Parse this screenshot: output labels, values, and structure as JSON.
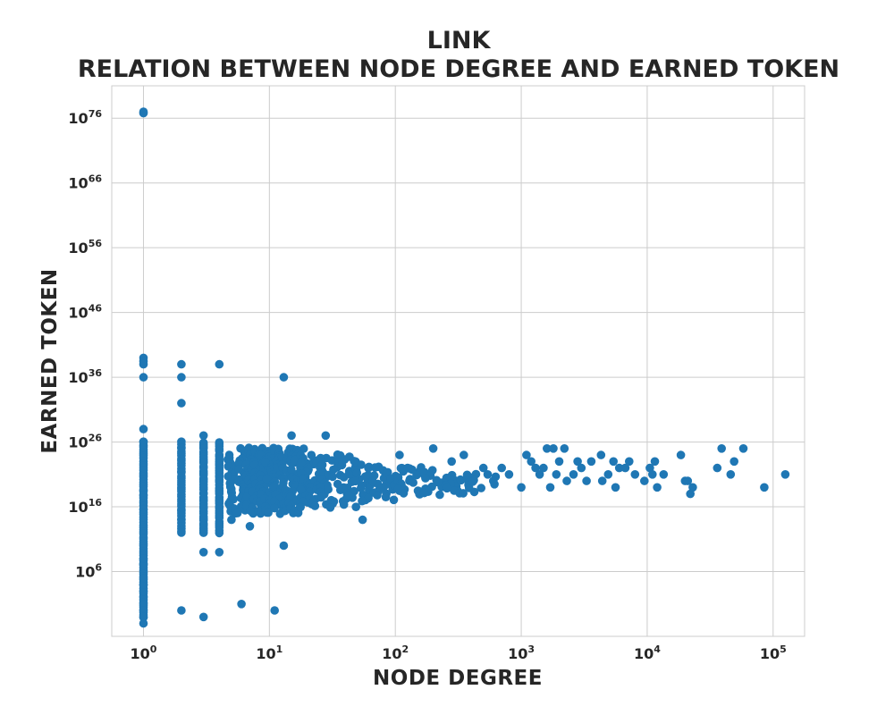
{
  "chart_data": {
    "type": "scatter",
    "title": "LINK",
    "subtitle": "RELATION BETWEEN NODE DEGREE AND EARNED TOKEN",
    "xlabel": "NODE DEGREE",
    "ylabel": "EARNED TOKEN",
    "x_scale": "log",
    "y_scale": "log",
    "xlim": [
      0.56,
      177800
    ],
    "ylim": [
      0.0001,
      1e+81
    ],
    "grid": true,
    "marker_color": "#1f77b4",
    "grid_color": "#cccccc",
    "x_ticks": [
      {
        "value": 1,
        "base": "10",
        "exp": "0"
      },
      {
        "value": 10,
        "base": "10",
        "exp": "1"
      },
      {
        "value": 100,
        "base": "10",
        "exp": "2"
      },
      {
        "value": 1000,
        "base": "10",
        "exp": "3"
      },
      {
        "value": 10000,
        "base": "10",
        "exp": "4"
      },
      {
        "value": 100000,
        "base": "10",
        "exp": "5"
      }
    ],
    "y_ticks": [
      {
        "value": 1000000.0,
        "base": "10",
        "exp": "6"
      },
      {
        "value": 1e+16,
        "base": "10",
        "exp": "16"
      },
      {
        "value": 1e+26,
        "base": "10",
        "exp": "26"
      },
      {
        "value": 1e+36,
        "base": "10",
        "exp": "36"
      },
      {
        "value": 1e+46,
        "base": "10",
        "exp": "46"
      },
      {
        "value": 1e+56,
        "base": "10",
        "exp": "56"
      },
      {
        "value": 1e+66,
        "base": "10",
        "exp": "66"
      },
      {
        "value": 1e+76,
        "base": "10",
        "exp": "76"
      }
    ],
    "dense_bands": [
      {
        "x": 1,
        "y_min": 0.1,
        "y_max": 1e+26
      },
      {
        "x": 2,
        "y_min": 1000000000000.0,
        "y_max": 1e+26
      },
      {
        "x": 3,
        "y_min": 1000000000000.0,
        "y_max": 1e+26
      },
      {
        "x": 4,
        "y_min": 1000000000000.0,
        "y_max": 1e+26
      },
      {
        "x": 5,
        "y_min": 1000000000000000.0,
        "y_max": 1e+24
      },
      {
        "x": 6,
        "y_min": 1000000000000000.0,
        "y_max": 1e+25
      },
      {
        "x": 7,
        "y_min": 1000000000000000.0,
        "y_max": 1e+25
      },
      {
        "x": 8,
        "y_min": 1000000000000000.0,
        "y_max": 1e+25
      },
      {
        "x": 9,
        "y_min": 1000000000000000.0,
        "y_max": 1e+25
      },
      {
        "x": 10,
        "y_min": 1000000000000000.0,
        "y_max": 1e+25
      },
      {
        "x": 12,
        "y_min": 1000000000000000.0,
        "y_max": 1e+25
      },
      {
        "x": 14,
        "y_min": 1000000000000000.0,
        "y_max": 1e+25
      },
      {
        "x": 16,
        "y_min": 1000000000000000.0,
        "y_max": 1e+25
      },
      {
        "x": 18,
        "y_min": 1e+16,
        "y_max": 1e+25
      },
      {
        "x": 20,
        "y_min": 1e+16,
        "y_max": 1e+24
      },
      {
        "x": 25,
        "y_min": 1e+16,
        "y_max": 1e+24
      },
      {
        "x": 30,
        "y_min": 1e+16,
        "y_max": 1e+24
      },
      {
        "x": 40,
        "y_min": 1e+16,
        "y_max": 1e+24
      },
      {
        "x": 50,
        "y_min": 1e+17,
        "y_max": 1e+23
      },
      {
        "x": 60,
        "y_min": 1e+17,
        "y_max": 1e+23
      },
      {
        "x": 80,
        "y_min": 1e+17,
        "y_max": 1e+22
      },
      {
        "x": 100,
        "y_min": 1e+18,
        "y_max": 1e+22
      },
      {
        "x": 130,
        "y_min": 1e+18,
        "y_max": 1e+22
      },
      {
        "x": 160,
        "y_min": 1e+18,
        "y_max": 1e+22
      },
      {
        "x": 200,
        "y_min": 1e+18,
        "y_max": 1e+22
      },
      {
        "x": 250,
        "y_min": 1e+18,
        "y_max": 1e+21
      },
      {
        "x": 300,
        "y_min": 1e+18,
        "y_max": 1e+21
      },
      {
        "x": 400,
        "y_min": 1e+18,
        "y_max": 1e+21
      },
      {
        "x": 500,
        "y_min": 1e+19,
        "y_max": 1e+21
      }
    ],
    "points": [
      [
        1,
        1e+77
      ],
      [
        1,
        6e+76
      ],
      [
        1,
        1e+39
      ],
      [
        1,
        3e+38
      ],
      [
        1,
        1e+38
      ],
      [
        1,
        1e+36
      ],
      [
        1,
        1e+28
      ],
      [
        1,
        1e+26
      ],
      [
        1,
        10.0
      ],
      [
        1,
        1.0
      ],
      [
        1,
        0.1
      ],
      [
        1,
        0.01
      ],
      [
        1,
        1000.0
      ],
      [
        1,
        10000.0
      ],
      [
        1,
        100000.0
      ],
      [
        1,
        10000000.0
      ],
      [
        1,
        100000000.0
      ],
      [
        2,
        1e+38
      ],
      [
        2,
        1e+36
      ],
      [
        2,
        1e+32
      ],
      [
        2,
        1.0
      ],
      [
        3,
        1e+27
      ],
      [
        3,
        1000000000.0
      ],
      [
        3,
        0.1
      ],
      [
        4,
        1e+38
      ],
      [
        4,
        1000000000.0
      ],
      [
        5,
        100000000000000.0
      ],
      [
        6,
        10.0
      ],
      [
        7,
        10000000000000.0
      ],
      [
        11,
        1.0
      ],
      [
        13,
        1e+36
      ],
      [
        13,
        10000000000.0
      ],
      [
        15,
        1e+27
      ],
      [
        28,
        1e+27
      ],
      [
        55,
        100000000000000.0
      ],
      [
        108,
        1e+24
      ],
      [
        125,
        1e+22
      ],
      [
        200,
        1e+25
      ],
      [
        280,
        1e+23
      ],
      [
        350,
        1e+24
      ],
      [
        500,
        1e+22
      ],
      [
        600,
        1e+20
      ],
      [
        700,
        1e+22
      ],
      [
        800,
        1e+21
      ],
      [
        1000,
        1e+19
      ],
      [
        1100,
        1e+24
      ],
      [
        1200,
        1e+23
      ],
      [
        1300,
        1e+22
      ],
      [
        1400,
        1e+21
      ],
      [
        1500,
        1e+22
      ],
      [
        1600,
        1e+25
      ],
      [
        1700,
        1e+19
      ],
      [
        1800,
        1e+25
      ],
      [
        1900,
        1e+21
      ],
      [
        2000,
        1e+23
      ],
      [
        2200,
        1e+25
      ],
      [
        2300,
        1e+20
      ],
      [
        2600,
        1e+21
      ],
      [
        2800,
        1e+23
      ],
      [
        3000,
        1e+22
      ],
      [
        3300,
        1e+20
      ],
      [
        3600,
        1e+23
      ],
      [
        4300,
        1e+24
      ],
      [
        4400,
        1e+20
      ],
      [
        4900,
        1e+21
      ],
      [
        5400,
        1e+23
      ],
      [
        5600,
        1e+19
      ],
      [
        6000,
        1e+22
      ],
      [
        6700,
        1e+22
      ],
      [
        7200,
        1e+23
      ],
      [
        8000,
        1e+21
      ],
      [
        9500,
        1e+20
      ],
      [
        10500,
        1e+22
      ],
      [
        11000,
        1e+21
      ],
      [
        11500,
        1e+23
      ],
      [
        12000,
        1e+19
      ],
      [
        13500,
        1e+21
      ],
      [
        18500,
        1e+24
      ],
      [
        20000,
        1e+20
      ],
      [
        21000,
        1e+20
      ],
      [
        22000,
        1e+18
      ],
      [
        23000,
        1e+19
      ],
      [
        36000,
        1e+22
      ],
      [
        39000,
        1e+25
      ],
      [
        46000,
        1e+21
      ],
      [
        49000,
        1e+23
      ],
      [
        58000,
        1e+25
      ],
      [
        85000,
        1e+19
      ],
      [
        125000,
        1e+21
      ]
    ]
  }
}
